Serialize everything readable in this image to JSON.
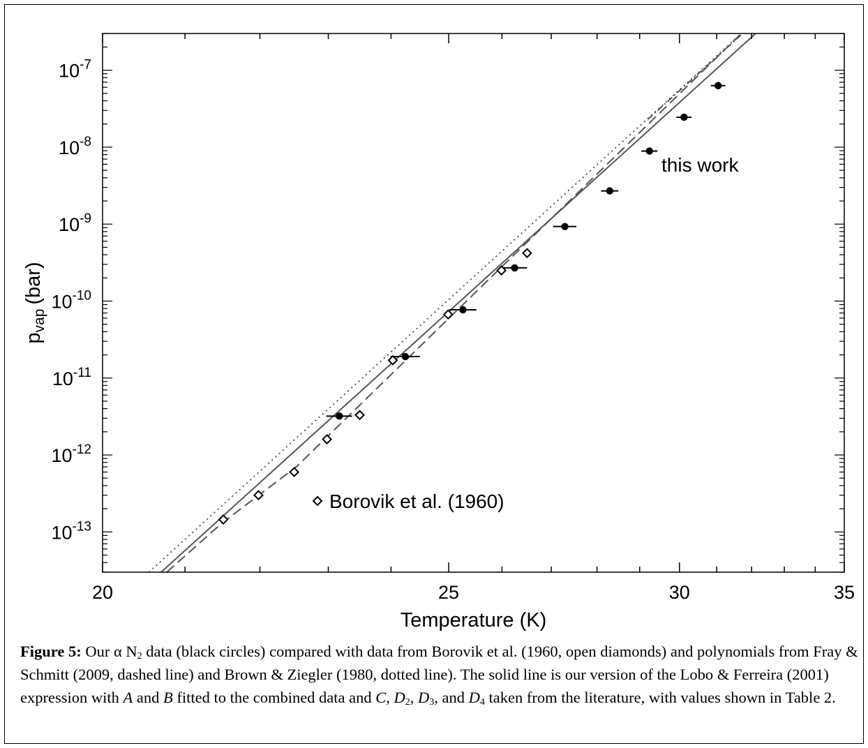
{
  "chart_data": {
    "type": "scatter",
    "xlabel": "Temperature (K)",
    "ylabel": "p",
    "ylabel_sub": "vap",
    "ylabel_unit": "(bar)",
    "y_scale": "log",
    "x_reciprocal": true,
    "xlim": [
      20,
      35
    ],
    "ylim": [
      3e-14,
      3e-07
    ],
    "x_tick_labels": [
      "20",
      "25",
      "30",
      "35"
    ],
    "y_ticks": [
      {
        "value": 1e-13,
        "exp": "-13"
      },
      {
        "value": 1e-12,
        "exp": "-12"
      },
      {
        "value": 1e-11,
        "exp": "-11"
      },
      {
        "value": 1e-10,
        "exp": "-10"
      },
      {
        "value": 1e-09,
        "exp": "-9"
      },
      {
        "value": 1e-08,
        "exp": "-8"
      },
      {
        "value": 1e-07,
        "exp": "-7"
      }
    ],
    "y_tick_base": "10",
    "series": [
      {
        "name": "this work",
        "marker": "filled-circle",
        "error_bars": "x",
        "points": [
          {
            "x": 23.17,
            "y": 3.2e-12,
            "xerr": 0.2
          },
          {
            "x": 24.24,
            "y": 1.9e-11,
            "xerr": 0.25
          },
          {
            "x": 25.26,
            "y": 7.7e-11,
            "xerr": 0.25
          },
          {
            "x": 26.25,
            "y": 2.7e-10,
            "xerr": 0.25
          },
          {
            "x": 27.29,
            "y": 9.3e-10,
            "xerr": 0.25
          },
          {
            "x": 28.29,
            "y": 2.7e-09,
            "xerr": 0.2
          },
          {
            "x": 29.24,
            "y": 8.9e-09,
            "xerr": 0.2
          },
          {
            "x": 30.12,
            "y": 2.45e-08,
            "xerr": 0.2
          },
          {
            "x": 31.04,
            "y": 6.3e-08,
            "xerr": 0.2
          }
        ]
      },
      {
        "name": "Borovik et al. (1960)",
        "marker": "open-diamond",
        "points": [
          {
            "x": 21.5,
            "y": 1.45e-13
          },
          {
            "x": 21.98,
            "y": 3e-13
          },
          {
            "x": 22.49,
            "y": 6e-13
          },
          {
            "x": 22.98,
            "y": 1.6e-12
          },
          {
            "x": 23.49,
            "y": 3.3e-12
          },
          {
            "x": 24.03,
            "y": 1.7e-11
          },
          {
            "x": 24.99,
            "y": 6.7e-11
          },
          {
            "x": 25.99,
            "y": 2.5e-10
          },
          {
            "x": 26.5,
            "y": 4.2e-10
          }
        ]
      },
      {
        "name": "fit-solid",
        "style": "solid",
        "points": [
          {
            "x": 20.7,
            "y": 3e-14
          },
          {
            "x": 32.12,
            "y": 3e-07
          }
        ]
      },
      {
        "name": "fray-schmitt-dashed",
        "style": "dashed",
        "points": [
          {
            "x": 20.77,
            "y": 3e-14
          },
          {
            "x": 21.48,
            "y": 1.3e-13
          },
          {
            "x": 22.52,
            "y": 7e-13
          },
          {
            "x": 31.7,
            "y": 3e-07
          }
        ]
      },
      {
        "name": "brown-ziegler-dotted",
        "style": "dotted",
        "points": [
          {
            "x": 20.55,
            "y": 3e-14
          },
          {
            "x": 31.7,
            "y": 3e-07
          }
        ]
      },
      {
        "name": "dash-dot",
        "style": "dashdot",
        "points": [
          {
            "x": 29.2,
            "y": 2.3e-08
          },
          {
            "x": 31.74,
            "y": 3e-07
          }
        ]
      }
    ],
    "annotations": [
      {
        "text": "this work"
      },
      {
        "text": "Borovik et al. (1960)",
        "marker": "open-diamond"
      }
    ]
  },
  "caption": {
    "label": "Figure 5:",
    "parts": [
      {
        "t": " Our α N",
        "s": "n"
      },
      {
        "t": "2",
        "s": "sub"
      },
      {
        "t": " data (black circles) compared with data from Borovik et al. (1960, open diamonds) and polynomials from Fray & Schmitt (2009, dashed line) and Brown & Ziegler (1980, dotted line).  The solid line is our version of the Lobo & Ferreira (2001) expression with ",
        "s": "n"
      },
      {
        "t": "A",
        "s": "i"
      },
      {
        "t": " and ",
        "s": "n"
      },
      {
        "t": "B",
        "s": "i"
      },
      {
        "t": " fitted to the combined data and ",
        "s": "n"
      },
      {
        "t": "C",
        "s": "i"
      },
      {
        "t": ", ",
        "s": "n"
      },
      {
        "t": "D",
        "s": "i"
      },
      {
        "t": "2",
        "s": "sub"
      },
      {
        "t": ", ",
        "s": "n"
      },
      {
        "t": "D",
        "s": "i"
      },
      {
        "t": "3",
        "s": "sub"
      },
      {
        "t": ", and ",
        "s": "n"
      },
      {
        "t": "D",
        "s": "i"
      },
      {
        "t": "4",
        "s": "sub"
      },
      {
        "t": " taken from the literature, with values shown in Table 2.",
        "s": "n"
      }
    ]
  }
}
